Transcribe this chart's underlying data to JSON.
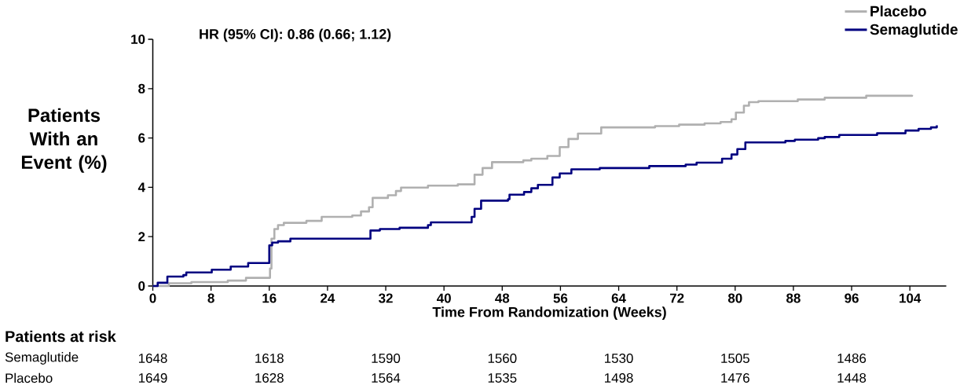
{
  "chart_data": {
    "type": "step",
    "xlabel": "Time From Randomization (Weeks)",
    "ylabel": "Patients With an Event (%)",
    "xlim": [
      0,
      109
    ],
    "ylim": [
      0,
      10
    ],
    "xticks": [
      0,
      8,
      16,
      24,
      32,
      40,
      48,
      56,
      64,
      72,
      80,
      88,
      96,
      104
    ],
    "yticks": [
      0,
      2,
      4,
      6,
      8,
      10
    ],
    "legend": "top right",
    "series": [
      {
        "name": "Placebo",
        "color": "#b0b0b0",
        "x": [
          0,
          2.2,
          5.3,
          10.3,
          12.8,
          16.1,
          16.3,
          16.7,
          17.2,
          18,
          21.1,
          23.2,
          27.4,
          28.6,
          29.7,
          30.2,
          32.3,
          33.4,
          34.1,
          37.8,
          41.9,
          44.2,
          45.3,
          46.6,
          50.9,
          52,
          54.2,
          55.9,
          57.1,
          58.4,
          61.6,
          69,
          72.3,
          75.8,
          78,
          79.5,
          80.1,
          81.2,
          81.9,
          83.2,
          88.6,
          92.3,
          98,
          104.3
        ],
        "values": [
          0,
          0.11,
          0.16,
          0.22,
          0.33,
          0.71,
          1.92,
          2.31,
          2.47,
          2.56,
          2.64,
          2.8,
          2.86,
          3.02,
          3.19,
          3.57,
          3.68,
          3.85,
          3.99,
          4.07,
          4.12,
          4.51,
          4.78,
          5.02,
          5.09,
          5.16,
          5.27,
          5.63,
          5.96,
          6.18,
          6.43,
          6.48,
          6.54,
          6.59,
          6.65,
          6.76,
          7.03,
          7.31,
          7.45,
          7.49,
          7.56,
          7.63,
          7.71,
          7.75
        ]
      },
      {
        "name": "Semaglutide",
        "color": "#000080",
        "x": [
          0,
          0.67,
          2.0,
          4.2,
          4.6,
          8.1,
          10.7,
          13.1,
          16.0,
          16.4,
          17.2,
          18.9,
          29.9,
          31.2,
          33.9,
          37.8,
          38.2,
          43.8,
          44.2,
          45.1,
          48.8,
          49,
          51,
          52,
          52.9,
          54.9,
          55.9,
          57.5,
          61.4,
          68.2,
          73.2,
          74.7,
          78.2,
          79.5,
          80.3,
          81.4,
          86.9,
          88.2,
          91.4,
          92.3,
          94.3,
          99.5,
          103.4,
          105.2,
          106.9,
          107.7
        ],
        "values": [
          0,
          0.13,
          0.38,
          0.44,
          0.55,
          0.66,
          0.79,
          0.93,
          1.65,
          1.76,
          1.81,
          1.92,
          2.25,
          2.31,
          2.36,
          2.47,
          2.58,
          2.8,
          3.13,
          3.46,
          3.52,
          3.7,
          3.81,
          3.96,
          4.1,
          4.4,
          4.56,
          4.73,
          4.78,
          4.86,
          4.92,
          5.0,
          5.16,
          5.33,
          5.55,
          5.82,
          5.88,
          5.93,
          5.99,
          6.04,
          6.12,
          6.19,
          6.3,
          6.37,
          6.43,
          6.51
        ]
      }
    ],
    "annotations": [
      "HR (95% CI): 0.86 (0.66; 1.12)",
      "Patients at risk",
      "Semaglutide",
      "1648",
      "1618",
      "1590",
      "1560",
      "1530",
      "1505",
      "1486",
      "Placebo",
      "1649",
      "1628",
      "1564",
      "1535",
      "1498",
      "1476",
      "1448"
    ]
  }
}
